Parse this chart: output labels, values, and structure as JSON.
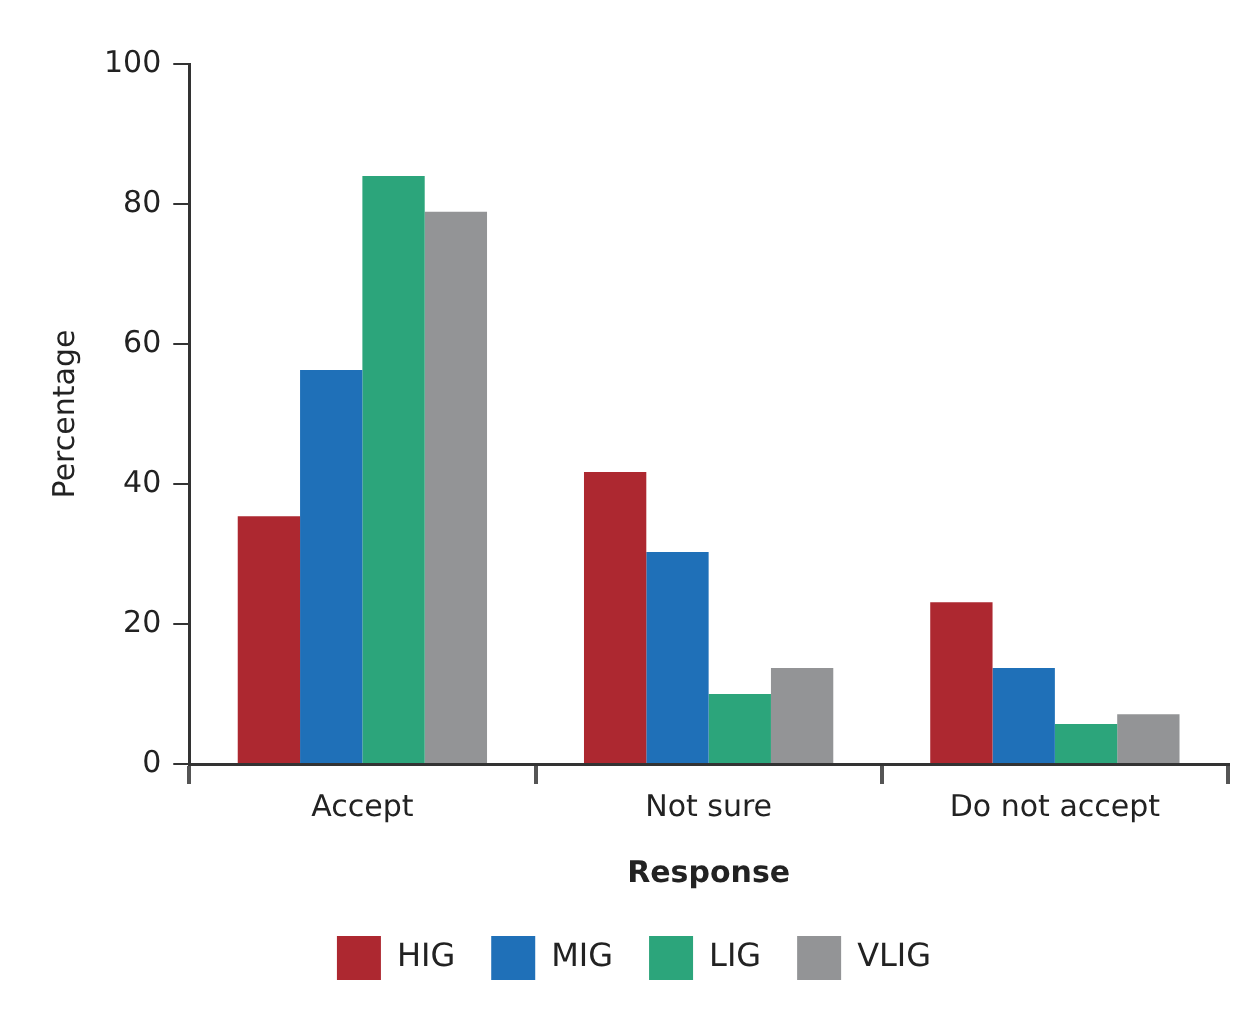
{
  "chart_data": {
    "type": "bar",
    "xlabel": "Response",
    "ylabel": "Percentage",
    "categories": [
      "Accept",
      "Not sure",
      "Do not accept"
    ],
    "series": [
      {
        "name": "HIG",
        "color": "#ad2830",
        "values": [
          35.4,
          41.7,
          23.1
        ]
      },
      {
        "name": "MIG",
        "color": "#1f70b8",
        "values": [
          56.3,
          30.3,
          13.7
        ]
      },
      {
        "name": "LIG",
        "color": "#2ca57b",
        "values": [
          84,
          10,
          5.7
        ]
      },
      {
        "name": "VLIG",
        "color": "#939496",
        "values": [
          78.9,
          13.7,
          7.1
        ]
      }
    ],
    "ylim": [
      0,
      100
    ],
    "yticks": [
      0,
      20,
      40,
      60,
      80,
      100
    ],
    "grid": false,
    "legend": "bottom"
  }
}
